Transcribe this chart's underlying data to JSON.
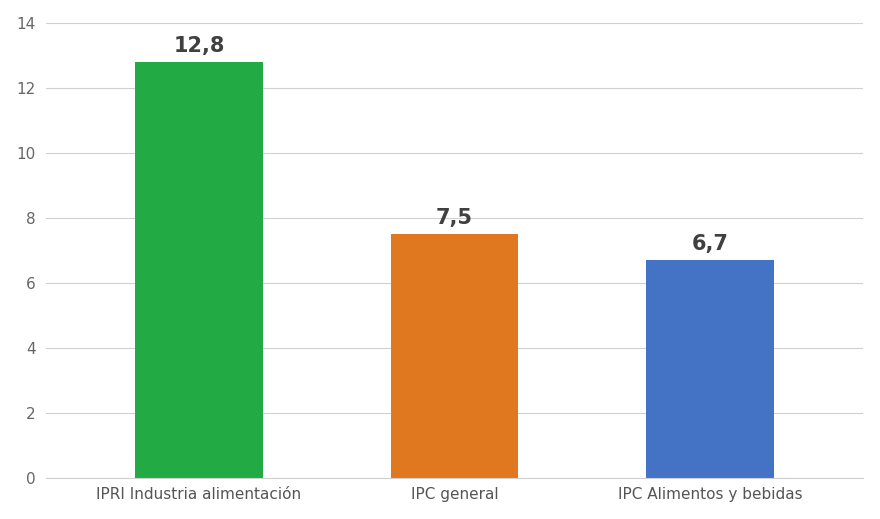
{
  "categories": [
    "IPRI Industria alimentación",
    "IPC general",
    "IPC Alimentos y bebidas"
  ],
  "values": [
    12.8,
    7.5,
    6.7
  ],
  "bar_colors": [
    "#22aa44",
    "#e07820",
    "#4472c4"
  ],
  "labels": [
    "12,8",
    "7,5",
    "6,7"
  ],
  "ylim": [
    0,
    14
  ],
  "yticks": [
    0,
    2,
    4,
    6,
    8,
    10,
    12,
    14
  ],
  "background_color": "#ffffff",
  "grid_color": "#d0d0d0",
  "label_fontsize": 15,
  "tick_fontsize": 11,
  "bar_width": 0.5
}
